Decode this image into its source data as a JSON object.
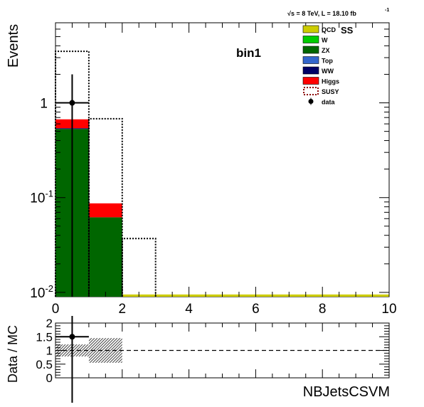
{
  "header": {
    "energy_lumi": "√s = 8 TeV, L = 18.10 fb",
    "lumi_exponent": "-1",
    "region_tag": "SS",
    "bin_label": "bin1"
  },
  "chart_data": [
    {
      "type": "bar",
      "panel": "main",
      "stacked": true,
      "y_scale": "log",
      "ylabel": "Events",
      "xlabel": "",
      "xlim": [
        0,
        10
      ],
      "ylim": [
        0.009,
        7
      ],
      "x_ticks": [
        "0",
        "2",
        "4",
        "6",
        "8",
        "10"
      ],
      "y_ticks": [
        {
          "value": 1,
          "label": "1"
        },
        {
          "value": 0.1,
          "label": "10^-1"
        },
        {
          "value": 0.01,
          "label": "10^-2"
        }
      ],
      "bin_edges": [
        0,
        1,
        2,
        3,
        4,
        5,
        6,
        7,
        8,
        9,
        10
      ],
      "series": [
        {
          "name": "QCD",
          "color": "#cccc00",
          "values": [
            0,
            0,
            0.0095,
            0.0095,
            0.0095,
            0.0095,
            0.0095,
            0.0095,
            0.0095,
            0.0095
          ]
        },
        {
          "name": "W",
          "color": "#00cc00",
          "values": [
            0,
            0,
            0,
            0,
            0,
            0,
            0,
            0,
            0,
            0
          ]
        },
        {
          "name": "ZX",
          "color": "#006600",
          "values": [
            0.53,
            0.062,
            0,
            0,
            0,
            0,
            0,
            0,
            0,
            0
          ]
        },
        {
          "name": "Top",
          "color": "#3366cc",
          "values": [
            0,
            0,
            0,
            0,
            0,
            0,
            0,
            0,
            0,
            0
          ]
        },
        {
          "name": "WW",
          "color": "#000066",
          "values": [
            0.01,
            0,
            0,
            0,
            0,
            0,
            0,
            0,
            0,
            0
          ]
        },
        {
          "name": "Higgs",
          "color": "#ff0000",
          "values": [
            0.13,
            0.025,
            0,
            0,
            0,
            0,
            0,
            0,
            0,
            0
          ]
        }
      ],
      "overlay": {
        "name": "SUSY",
        "style": "dotted",
        "color": "#000000",
        "values": [
          3.5,
          0.68,
          0.037,
          0,
          0,
          0,
          0,
          0,
          0,
          0
        ]
      },
      "data_points": {
        "name": "data",
        "points": [
          {
            "x": 0.5,
            "y": 1.0,
            "x_err": 0.5,
            "y_low": 0.0,
            "y_high": 2.0
          }
        ]
      },
      "legend_position": "top-right"
    },
    {
      "type": "scatter",
      "panel": "ratio",
      "ylabel": "Data / MC",
      "xlabel": "NBJetsCSVM",
      "xlim": [
        0,
        10
      ],
      "ylim": [
        0,
        2
      ],
      "y_ticks": [
        "0",
        "0.5",
        "1",
        "1.5",
        "2"
      ],
      "reference_line": 1,
      "uncertainty_band": [
        {
          "x0": 0,
          "x1": 1,
          "low": 0.78,
          "high": 1.22
        },
        {
          "x0": 1,
          "x1": 2,
          "low": 0.55,
          "high": 1.45
        }
      ],
      "points": [
        {
          "x": 0.5,
          "y": 1.5,
          "x_err": 0.5,
          "y_low": 0,
          "y_high": 2
        }
      ]
    }
  ]
}
